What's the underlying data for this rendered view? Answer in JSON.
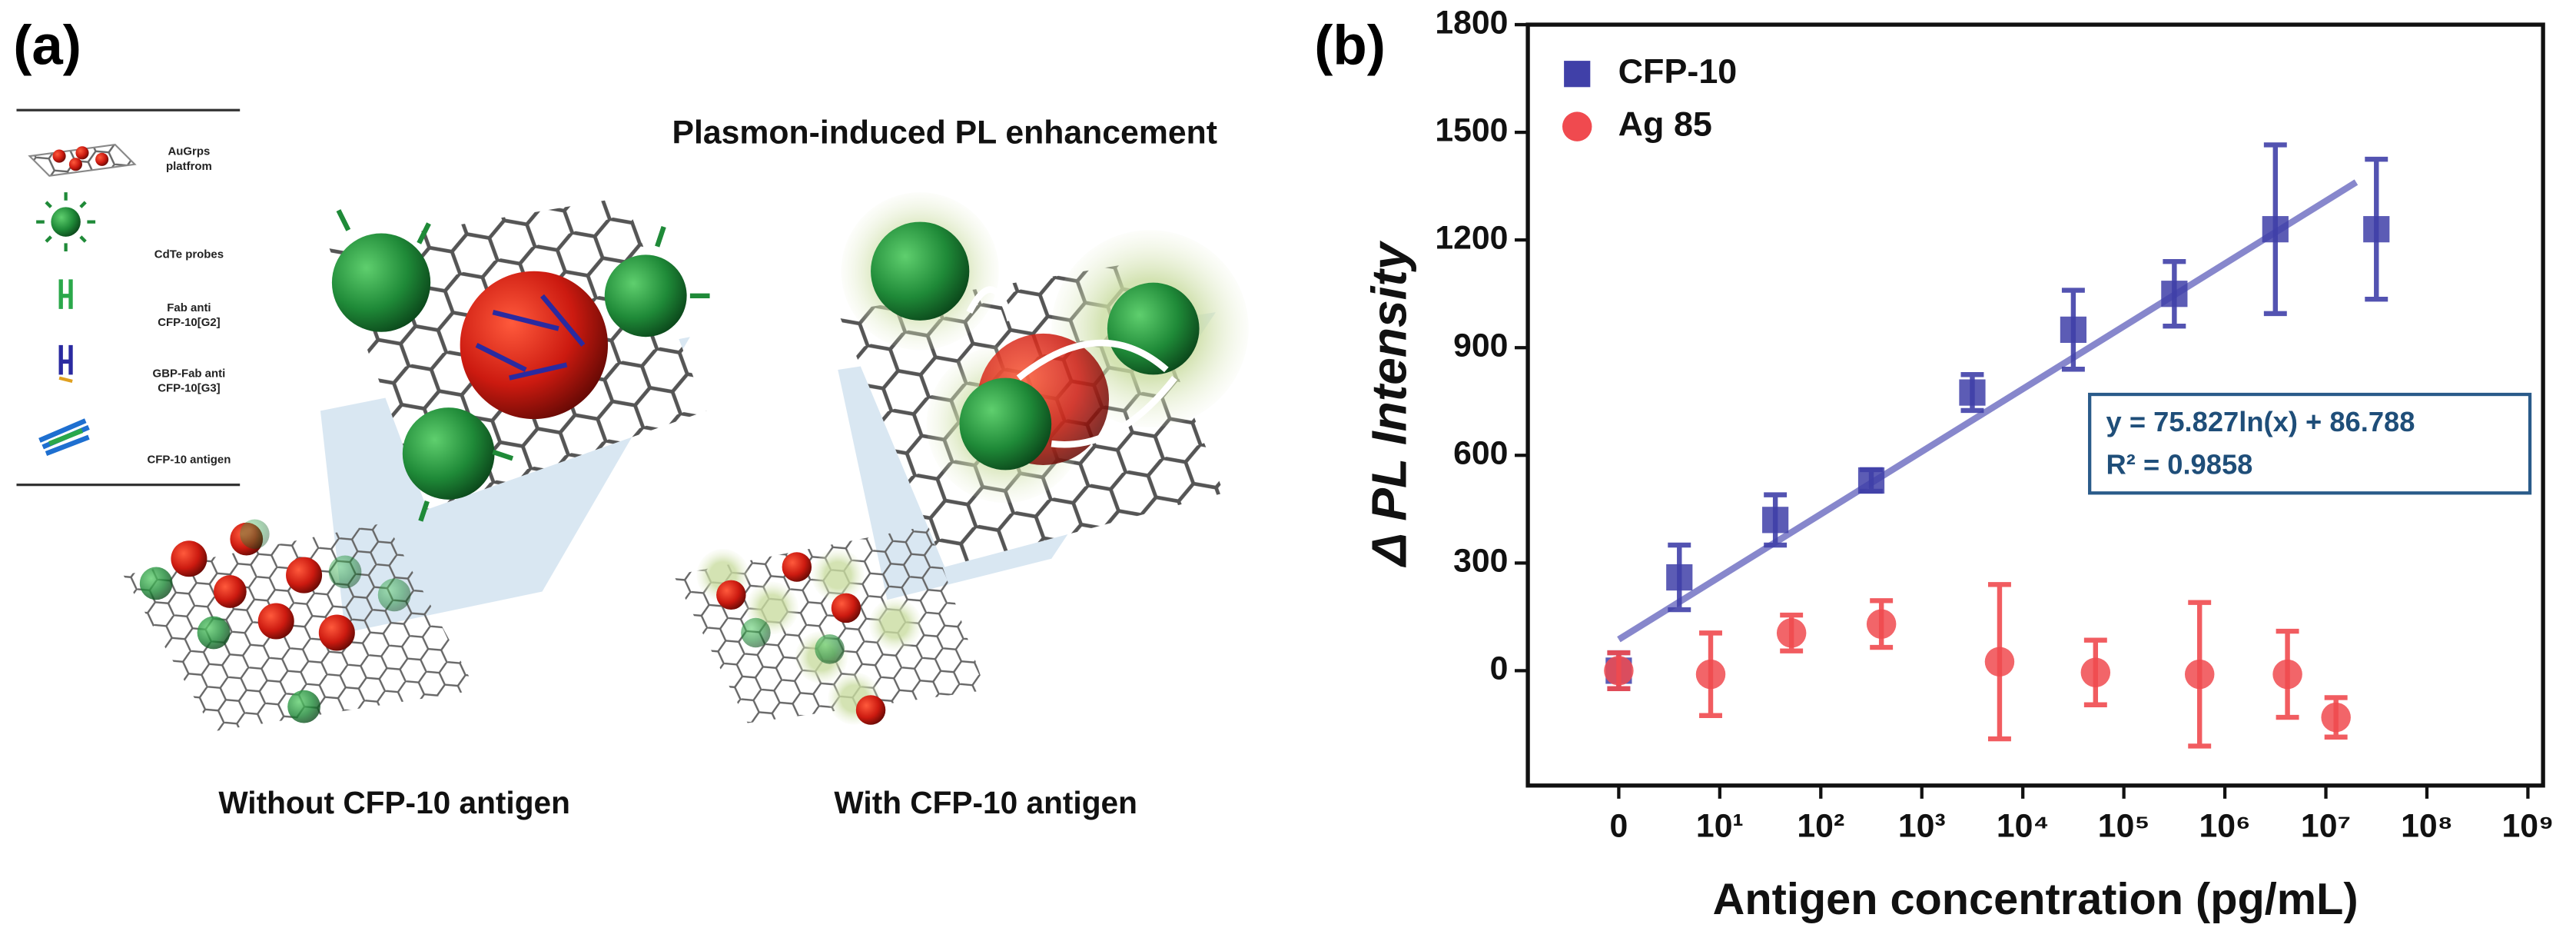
{
  "panel_a": {
    "label": "(a)",
    "legend": [
      {
        "lines": [
          "AuGrps",
          "platfrom"
        ]
      },
      {
        "lines": [
          "CdTe probes"
        ]
      },
      {
        "lines": [
          "Fab anti",
          "CFP-10[G2]"
        ]
      },
      {
        "lines": [
          "GBP-Fab anti",
          "CFP-10[G3]"
        ]
      },
      {
        "lines": [
          "CFP-10 antigen"
        ]
      }
    ],
    "title": "Plasmon-induced PL enhancement",
    "captions": [
      "Without CFP-10 antigen",
      "With CFP-10 antigen"
    ]
  },
  "chart_data": {
    "type": "scatter",
    "panel_label": "(b)",
    "xlabel": "Antigen concentration (pg/mL)",
    "ylabel": "Δ PL Intensity",
    "xlim": [
      -0.9,
      9.15
    ],
    "ylim": [
      -320,
      1800
    ],
    "xticks": [
      0,
      {
        "value": 1,
        "label": "10¹"
      },
      {
        "value": 2,
        "label": "10²"
      },
      {
        "value": 3,
        "label": "10³"
      },
      {
        "value": 4,
        "label": "10⁴"
      },
      {
        "value": 5,
        "label": "10⁵"
      },
      {
        "value": 6,
        "label": "10⁶"
      },
      {
        "value": 7,
        "label": "10⁷"
      },
      {
        "value": 8,
        "label": "10⁸"
      },
      {
        "value": 9,
        "label": "10⁹"
      }
    ],
    "yticks": [
      0,
      300,
      600,
      900,
      1200,
      1500,
      1800
    ],
    "legend": "upper left",
    "series": [
      {
        "name": "CFP-10",
        "color": "#4040a8",
        "marker": "square",
        "x": [
          0,
          0.6,
          1.55,
          2.5,
          3.5,
          4.5,
          5.5,
          6.5,
          7.5
        ],
        "values": [
          0,
          260,
          420,
          530,
          775,
          950,
          1050,
          1230,
          1230
        ],
        "errors": [
          50,
          90,
          70,
          30,
          50,
          110,
          90,
          235,
          195
        ]
      },
      {
        "name": "Ag 85",
        "color": "#f04a4f",
        "marker": "circle",
        "x": [
          0,
          0.91,
          1.71,
          2.6,
          3.77,
          4.72,
          5.75,
          6.62,
          7.1
        ],
        "values": [
          0,
          -10,
          105,
          130,
          25,
          -5,
          -10,
          -10,
          -130
        ],
        "errors": [
          50,
          115,
          50,
          65,
          215,
          90,
          200,
          120,
          55
        ]
      }
    ],
    "fit": {
      "equation": "y = 75.827ln(x) + 86.788",
      "r2": "R² = 0.9858",
      "color": "#6a6ac0",
      "x": [
        0,
        7.3
      ],
      "values": [
        87,
        1361
      ]
    }
  }
}
